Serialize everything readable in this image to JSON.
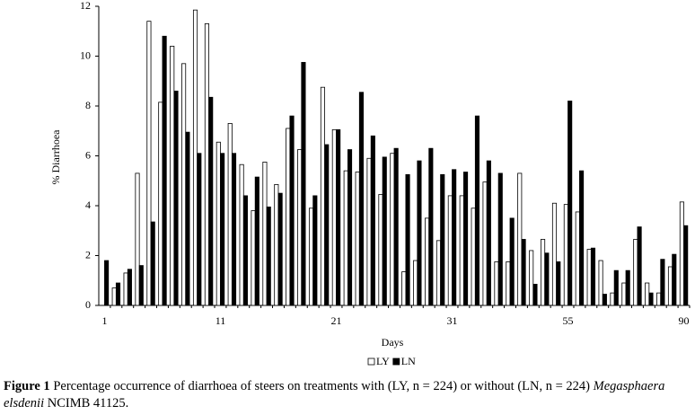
{
  "chart_data": {
    "type": "bar",
    "x_label": "Days",
    "y_label": "% Diarrhoea",
    "categories": [
      "1",
      null,
      null,
      null,
      null,
      null,
      null,
      null,
      null,
      null,
      "11",
      null,
      null,
      null,
      null,
      null,
      null,
      null,
      null,
      null,
      "21",
      null,
      null,
      null,
      null,
      null,
      null,
      null,
      null,
      null,
      "31",
      null,
      null,
      null,
      null,
      null,
      null,
      null,
      null,
      null,
      "55",
      null,
      null,
      null,
      null,
      null,
      null,
      null,
      null,
      null,
      "90"
    ],
    "series": [
      {
        "name": "LY",
        "color": "#ffffff",
        "values": [
          0,
          0.7,
          1.3,
          5.3,
          11.4,
          8.15,
          10.4,
          9.7,
          11.85,
          11.3,
          6.55,
          7.3,
          5.65,
          3.8,
          5.75,
          4.85,
          7.1,
          6.25,
          3.9,
          8.75,
          7.05,
          5.4,
          5.35,
          5.9,
          4.45,
          6.1,
          1.35,
          1.8,
          3.5,
          2.6,
          4.4,
          4.4,
          3.9,
          4.95,
          1.75,
          1.75,
          5.3,
          2.2,
          2.65,
          4.1,
          4.05,
          3.75,
          2.25,
          1.8,
          0.5,
          0.9,
          2.65,
          0.9,
          0.5,
          1.55,
          4.15
        ]
      },
      {
        "name": "LN",
        "color": "#000000",
        "values": [
          1.8,
          0.9,
          1.45,
          1.6,
          3.35,
          10.8,
          8.6,
          6.95,
          6.1,
          8.35,
          6.1,
          6.1,
          4.4,
          5.15,
          3.95,
          4.5,
          7.6,
          9.75,
          4.4,
          6.45,
          7.05,
          6.25,
          8.55,
          6.8,
          5.95,
          6.3,
          5.25,
          5.8,
          6.3,
          5.25,
          5.45,
          5.35,
          7.6,
          5.8,
          5.3,
          3.5,
          2.65,
          0.85,
          2.1,
          1.75,
          8.2,
          5.4,
          2.3,
          0.45,
          1.4,
          1.4,
          3.15,
          0.5,
          1.85,
          2.05,
          3.2
        ]
      }
    ],
    "ylim": [
      0,
      12
    ],
    "yticks": [
      0,
      2,
      4,
      6,
      8,
      10,
      12
    ],
    "grid": false,
    "legend": "bottom"
  },
  "caption": {
    "label": "Figure 1",
    "text": "Percentage occurrence of diarrhoea of steers on treatments with (LY, n = 224) or without (LN, n = 224)",
    "species": "Megasphaera elsdenii",
    "strain": "NCIMB 41125."
  }
}
